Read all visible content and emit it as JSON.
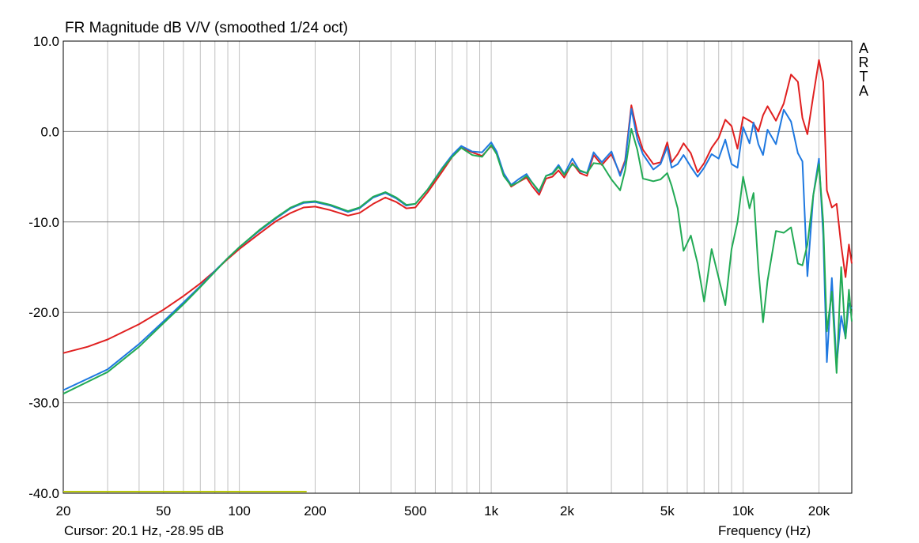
{
  "chart_data": {
    "type": "line",
    "title": "FR Magnitude dB V/V (smoothed 1/24 oct)",
    "xlabel": "Frequency (Hz)",
    "ylabel": "",
    "xscale": "log",
    "xlim": [
      20,
      27000
    ],
    "ylim": [
      -40,
      10
    ],
    "grid": true,
    "legend": "none",
    "x_ticks": [
      {
        "value": 20,
        "label": "20"
      },
      {
        "value": 50,
        "label": "50"
      },
      {
        "value": 100,
        "label": "100"
      },
      {
        "value": 200,
        "label": "200"
      },
      {
        "value": 500,
        "label": "500"
      },
      {
        "value": 1000,
        "label": "1k"
      },
      {
        "value": 2000,
        "label": "2k"
      },
      {
        "value": 5000,
        "label": "5k"
      },
      {
        "value": 10000,
        "label": "10k"
      },
      {
        "value": 20000,
        "label": "20k"
      }
    ],
    "y_ticks": [
      {
        "value": 10,
        "label": "10.0"
      },
      {
        "value": 0,
        "label": "0.0"
      },
      {
        "value": -10,
        "label": "-10.0"
      },
      {
        "value": -20,
        "label": "-20.0"
      },
      {
        "value": -30,
        "label": "-30.0"
      },
      {
        "value": -40,
        "label": "-40.0"
      }
    ],
    "series": [
      {
        "color": "#e02020",
        "points": [
          [
            20,
            -24.5
          ],
          [
            25,
            -23.8
          ],
          [
            30,
            -23.0
          ],
          [
            40,
            -21.3
          ],
          [
            50,
            -19.7
          ],
          [
            60,
            -18.2
          ],
          [
            70,
            -16.8
          ],
          [
            80,
            -15.4
          ],
          [
            90,
            -14.1
          ],
          [
            100,
            -13.0
          ],
          [
            120,
            -11.3
          ],
          [
            140,
            -9.9
          ],
          [
            160,
            -9.0
          ],
          [
            180,
            -8.4
          ],
          [
            200,
            -8.3
          ],
          [
            230,
            -8.7
          ],
          [
            270,
            -9.3
          ],
          [
            300,
            -9.0
          ],
          [
            340,
            -8.0
          ],
          [
            380,
            -7.3
          ],
          [
            420,
            -7.8
          ],
          [
            460,
            -8.5
          ],
          [
            500,
            -8.4
          ],
          [
            560,
            -6.7
          ],
          [
            640,
            -4.4
          ],
          [
            700,
            -2.8
          ],
          [
            760,
            -1.8
          ],
          [
            840,
            -2.3
          ],
          [
            920,
            -2.7
          ],
          [
            1000,
            -1.6
          ],
          [
            1050,
            -2.4
          ],
          [
            1120,
            -4.6
          ],
          [
            1200,
            -6.1
          ],
          [
            1280,
            -5.6
          ],
          [
            1380,
            -5.1
          ],
          [
            1450,
            -6.0
          ],
          [
            1550,
            -7.0
          ],
          [
            1650,
            -5.2
          ],
          [
            1750,
            -5.0
          ],
          [
            1850,
            -4.3
          ],
          [
            1950,
            -5.1
          ],
          [
            2100,
            -3.5
          ],
          [
            2250,
            -4.6
          ],
          [
            2400,
            -4.9
          ],
          [
            2550,
            -2.6
          ],
          [
            2750,
            -3.7
          ],
          [
            3000,
            -2.5
          ],
          [
            3250,
            -4.7
          ],
          [
            3400,
            -3.2
          ],
          [
            3600,
            2.9
          ],
          [
            3800,
            -0.1
          ],
          [
            4000,
            -2.0
          ],
          [
            4400,
            -3.6
          ],
          [
            4700,
            -3.4
          ],
          [
            5000,
            -1.2
          ],
          [
            5200,
            -3.4
          ],
          [
            5500,
            -2.5
          ],
          [
            5800,
            -1.3
          ],
          [
            6200,
            -2.4
          ],
          [
            6600,
            -4.5
          ],
          [
            7000,
            -3.5
          ],
          [
            7500,
            -1.8
          ],
          [
            8000,
            -0.7
          ],
          [
            8500,
            1.3
          ],
          [
            9000,
            0.6
          ],
          [
            9500,
            -1.9
          ],
          [
            10000,
            1.6
          ],
          [
            10600,
            1.2
          ],
          [
            11000,
            0.9
          ],
          [
            11500,
            0.0
          ],
          [
            12000,
            1.8
          ],
          [
            12500,
            2.8
          ],
          [
            13500,
            1.2
          ],
          [
            14500,
            3.1
          ],
          [
            15500,
            6.3
          ],
          [
            16500,
            5.5
          ],
          [
            17200,
            1.5
          ],
          [
            18000,
            -0.3
          ],
          [
            19000,
            4.0
          ],
          [
            20000,
            7.9
          ],
          [
            20800,
            5.5
          ],
          [
            21500,
            -6.5
          ],
          [
            22500,
            -8.4
          ],
          [
            23500,
            -8.0
          ],
          [
            24500,
            -12.6
          ],
          [
            25500,
            -16.1
          ],
          [
            26300,
            -12.5
          ],
          [
            27000,
            -14.6
          ]
        ]
      },
      {
        "color": "#1e78e0",
        "points": [
          [
            20,
            -28.6
          ],
          [
            30,
            -26.3
          ],
          [
            40,
            -23.5
          ],
          [
            50,
            -21.0
          ],
          [
            60,
            -18.9
          ],
          [
            70,
            -17.1
          ],
          [
            80,
            -15.4
          ],
          [
            90,
            -14.0
          ],
          [
            100,
            -12.8
          ],
          [
            120,
            -11.0
          ],
          [
            140,
            -9.6
          ],
          [
            160,
            -8.5
          ],
          [
            180,
            -7.9
          ],
          [
            200,
            -7.8
          ],
          [
            230,
            -8.2
          ],
          [
            270,
            -8.9
          ],
          [
            300,
            -8.5
          ],
          [
            340,
            -7.3
          ],
          [
            380,
            -6.8
          ],
          [
            420,
            -7.4
          ],
          [
            460,
            -8.2
          ],
          [
            500,
            -8.0
          ],
          [
            560,
            -6.4
          ],
          [
            640,
            -4.0
          ],
          [
            700,
            -2.6
          ],
          [
            760,
            -1.6
          ],
          [
            840,
            -2.2
          ],
          [
            920,
            -2.3
          ],
          [
            1000,
            -1.2
          ],
          [
            1050,
            -2.2
          ],
          [
            1120,
            -4.6
          ],
          [
            1200,
            -5.9
          ],
          [
            1280,
            -5.3
          ],
          [
            1380,
            -4.7
          ],
          [
            1450,
            -5.6
          ],
          [
            1550,
            -6.7
          ],
          [
            1650,
            -4.9
          ],
          [
            1750,
            -4.6
          ],
          [
            1850,
            -3.7
          ],
          [
            1950,
            -4.7
          ],
          [
            2100,
            -3.0
          ],
          [
            2250,
            -4.4
          ],
          [
            2400,
            -4.6
          ],
          [
            2550,
            -2.3
          ],
          [
            2750,
            -3.4
          ],
          [
            3000,
            -2.2
          ],
          [
            3250,
            -4.9
          ],
          [
            3400,
            -3.4
          ],
          [
            3600,
            2.5
          ],
          [
            3800,
            -0.8
          ],
          [
            4000,
            -2.5
          ],
          [
            4400,
            -4.2
          ],
          [
            4700,
            -3.6
          ],
          [
            5000,
            -1.7
          ],
          [
            5200,
            -4.0
          ],
          [
            5500,
            -3.6
          ],
          [
            5800,
            -2.6
          ],
          [
            6200,
            -3.9
          ],
          [
            6600,
            -5.0
          ],
          [
            7000,
            -4.0
          ],
          [
            7500,
            -2.5
          ],
          [
            8000,
            -3.0
          ],
          [
            8500,
            -0.9
          ],
          [
            9000,
            -3.6
          ],
          [
            9500,
            -4.0
          ],
          [
            10000,
            0.5
          ],
          [
            10600,
            -1.3
          ],
          [
            11000,
            1.0
          ],
          [
            11500,
            -1.4
          ],
          [
            12000,
            -2.6
          ],
          [
            12500,
            0.2
          ],
          [
            13500,
            -1.4
          ],
          [
            14500,
            2.4
          ],
          [
            15500,
            1.1
          ],
          [
            16500,
            -2.4
          ],
          [
            17200,
            -3.3
          ],
          [
            18000,
            -16.0
          ],
          [
            19000,
            -7.0
          ],
          [
            20000,
            -3.0
          ],
          [
            20800,
            -11.5
          ],
          [
            21500,
            -25.5
          ],
          [
            22500,
            -16.2
          ],
          [
            23500,
            -25.8
          ],
          [
            24500,
            -20.4
          ],
          [
            25500,
            -22.8
          ],
          [
            26300,
            -19.0
          ],
          [
            27000,
            -19.6
          ]
        ]
      },
      {
        "color": "#22aa55",
        "points": [
          [
            20,
            -29.0
          ],
          [
            30,
            -26.6
          ],
          [
            40,
            -23.8
          ],
          [
            50,
            -21.2
          ],
          [
            60,
            -19.1
          ],
          [
            70,
            -17.2
          ],
          [
            80,
            -15.5
          ],
          [
            90,
            -14.0
          ],
          [
            100,
            -12.8
          ],
          [
            120,
            -10.9
          ],
          [
            140,
            -9.5
          ],
          [
            160,
            -8.4
          ],
          [
            180,
            -7.8
          ],
          [
            200,
            -7.7
          ],
          [
            230,
            -8.1
          ],
          [
            270,
            -8.8
          ],
          [
            300,
            -8.4
          ],
          [
            340,
            -7.2
          ],
          [
            380,
            -6.7
          ],
          [
            420,
            -7.3
          ],
          [
            460,
            -8.1
          ],
          [
            500,
            -8.0
          ],
          [
            560,
            -6.4
          ],
          [
            640,
            -4.1
          ],
          [
            700,
            -2.8
          ],
          [
            760,
            -1.8
          ],
          [
            840,
            -2.6
          ],
          [
            920,
            -2.8
          ],
          [
            1000,
            -1.5
          ],
          [
            1050,
            -2.5
          ],
          [
            1120,
            -4.9
          ],
          [
            1200,
            -6.0
          ],
          [
            1280,
            -5.6
          ],
          [
            1380,
            -4.9
          ],
          [
            1450,
            -5.6
          ],
          [
            1550,
            -6.6
          ],
          [
            1650,
            -4.9
          ],
          [
            1750,
            -4.7
          ],
          [
            1850,
            -3.9
          ],
          [
            1950,
            -4.8
          ],
          [
            2100,
            -3.6
          ],
          [
            2250,
            -4.3
          ],
          [
            2400,
            -4.6
          ],
          [
            2550,
            -3.5
          ],
          [
            2750,
            -3.6
          ],
          [
            3000,
            -5.3
          ],
          [
            3250,
            -6.5
          ],
          [
            3400,
            -4.3
          ],
          [
            3600,
            0.3
          ],
          [
            3800,
            -2.0
          ],
          [
            4000,
            -5.2
          ],
          [
            4400,
            -5.5
          ],
          [
            4700,
            -5.3
          ],
          [
            5000,
            -4.6
          ],
          [
            5200,
            -6.0
          ],
          [
            5500,
            -8.5
          ],
          [
            5800,
            -13.2
          ],
          [
            6200,
            -11.5
          ],
          [
            6600,
            -14.6
          ],
          [
            7000,
            -18.8
          ],
          [
            7500,
            -13.0
          ],
          [
            8000,
            -16.2
          ],
          [
            8500,
            -19.2
          ],
          [
            9000,
            -13.0
          ],
          [
            9500,
            -10.0
          ],
          [
            10000,
            -5.0
          ],
          [
            10600,
            -8.5
          ],
          [
            11000,
            -6.8
          ],
          [
            11500,
            -15.2
          ],
          [
            12000,
            -21.1
          ],
          [
            12500,
            -16.5
          ],
          [
            13500,
            -11.0
          ],
          [
            14500,
            -11.2
          ],
          [
            15500,
            -10.6
          ],
          [
            16500,
            -14.6
          ],
          [
            17200,
            -14.8
          ],
          [
            18000,
            -12.5
          ],
          [
            19000,
            -7.0
          ],
          [
            20000,
            -3.6
          ],
          [
            20800,
            -10.0
          ],
          [
            21500,
            -22.1
          ],
          [
            22500,
            -17.7
          ],
          [
            23500,
            -26.7
          ],
          [
            24500,
            -15.0
          ],
          [
            25500,
            -22.9
          ],
          [
            26300,
            -17.5
          ],
          [
            27000,
            -21.0
          ]
        ]
      }
    ],
    "marker_line": {
      "color": "#b8c80a",
      "x_start": 20,
      "x_end": 185,
      "y": -40
    }
  },
  "brand_letters": [
    "A",
    "R",
    "T",
    "A"
  ],
  "cursor_readout": "Cursor: 20.1 Hz, -28.95 dB",
  "colors": {
    "background": "#ffffff",
    "grid": "#c0c0c0",
    "axis": "#000000"
  }
}
